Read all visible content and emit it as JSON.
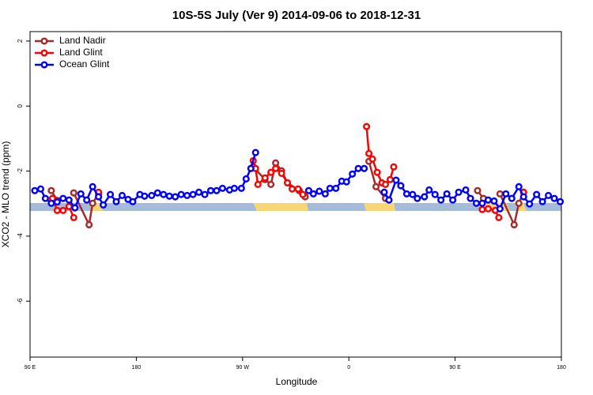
{
  "chart_data": {
    "type": "line",
    "title": "10S-5S July (Ver 9)   2014-09-06 to 2018-12-31",
    "x_label": "Longitude",
    "y_label": "XCO2 - MLO trend (ppm)",
    "xlim": [
      90,
      540
    ],
    "ylim": [
      -7.72,
      2.29
    ],
    "xticks": [
      {
        "value": 90,
        "label": "90 E"
      },
      {
        "value": 180,
        "label": "180"
      },
      {
        "value": 270,
        "label": "90 W"
      },
      {
        "value": 360,
        "label": "0"
      },
      {
        "value": 450,
        "label": "90 E"
      },
      {
        "value": 540,
        "label": "180"
      }
    ],
    "yticks": [
      2,
      0,
      -2,
      -4,
      -6
    ],
    "legend": "top-left",
    "series": [
      {
        "name": "Land Nadir",
        "color": "#a52a2a",
        "x": [
          108,
          113,
          120,
          127,
          140,
          143,
          148,
          260,
          279,
          289,
          294,
          298,
          303,
          308,
          318,
          323,
          350,
          377,
          383,
          391,
          430,
          469,
          474,
          480,
          488,
          500,
          504,
          508
        ],
        "values": [
          -2.6,
          -2.9,
          null,
          -2.67,
          -3.65,
          -2.99,
          -2.7,
          null,
          -1.87,
          -2.26,
          -2.41,
          -1.75,
          -1.99,
          -2.36,
          -2.6,
          -2.79,
          null,
          -1.7,
          -2.48,
          -2.84,
          null,
          -2.6,
          -2.84,
          null,
          -2.7,
          -3.65,
          -2.99,
          -2.65
        ]
      },
      {
        "name": "Land Glint",
        "color": "#ff0000",
        "x": [
          109,
          113,
          118,
          123,
          127,
          135,
          148,
          260,
          279,
          281,
          283,
          289,
          294,
          298,
          303,
          308,
          312,
          317,
          321,
          350,
          375,
          377,
          380,
          384,
          388,
          391,
          395,
          398,
          430,
          473,
          478,
          484,
          487,
          495,
          508
        ],
        "values": [
          -2.84,
          -3.21,
          -3.21,
          -3.09,
          -3.43,
          null,
          -2.65,
          null,
          -1.68,
          -1.92,
          -2.41,
          -2.21,
          -2.04,
          -1.92,
          -2.07,
          -2.36,
          -2.55,
          -2.55,
          -2.72,
          null,
          -0.63,
          -1.46,
          -1.63,
          -2.04,
          -2.36,
          -2.41,
          -2.26,
          -1.87,
          null,
          -3.18,
          -3.16,
          -3.21,
          -3.43,
          null,
          -2.65
        ]
      },
      {
        "name": "Ocean Glint",
        "color": "#0000ff",
        "x": [
          94,
          99,
          103,
          108,
          113,
          118,
          123,
          128,
          133,
          138,
          143,
          148,
          152,
          158,
          163,
          168,
          173,
          177,
          183,
          187,
          193,
          198,
          203,
          208,
          213,
          218,
          223,
          228,
          233,
          238,
          243,
          248,
          253,
          259,
          263,
          269,
          273,
          277,
          281,
          300,
          326,
          330,
          335,
          340,
          344,
          349,
          354,
          358,
          363,
          368,
          373,
          380,
          390,
          394,
          400,
          404,
          409,
          414,
          418,
          424,
          428,
          433,
          438,
          443,
          448,
          453,
          459,
          463,
          468,
          473,
          478,
          483,
          488,
          493,
          498,
          504,
          508,
          513,
          519,
          524,
          529,
          534,
          539
        ],
        "values": [
          -2.6,
          -2.55,
          -2.84,
          -2.99,
          -2.95,
          -2.84,
          -2.89,
          -3.13,
          -2.7,
          -2.89,
          -2.48,
          -2.79,
          -3.04,
          -2.72,
          -2.94,
          -2.75,
          -2.87,
          -2.94,
          -2.72,
          -2.77,
          -2.75,
          -2.67,
          -2.72,
          -2.77,
          -2.79,
          -2.72,
          -2.75,
          -2.72,
          -2.65,
          -2.72,
          -2.6,
          -2.6,
          -2.53,
          -2.58,
          -2.53,
          -2.53,
          -2.24,
          -1.92,
          -1.43,
          null,
          -2.6,
          -2.7,
          -2.62,
          -2.7,
          -2.53,
          -2.53,
          -2.31,
          -2.33,
          -2.09,
          -1.92,
          -1.92,
          null,
          -2.65,
          -2.89,
          -2.28,
          -2.45,
          -2.7,
          -2.72,
          -2.84,
          -2.79,
          -2.58,
          -2.72,
          -2.89,
          -2.7,
          -2.89,
          -2.65,
          -2.58,
          -2.84,
          -2.99,
          -2.99,
          -2.89,
          -2.92,
          -3.16,
          -2.7,
          -2.84,
          -2.48,
          -2.79,
          -3.01,
          -2.72,
          -2.94,
          -2.75,
          -2.84,
          -2.94
        ]
      }
    ]
  }
}
